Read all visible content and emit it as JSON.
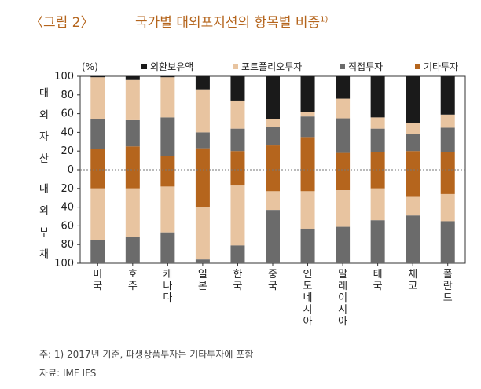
{
  "header": {
    "figure_label": "〈그림 2〉",
    "title": "국가별 대외포지션의 항목별 비중",
    "title_sup": "1)"
  },
  "footer": {
    "note": "주: 1) 2017년 기준, 파생상품투자는 기타투자에 포함",
    "source": "자료: IMF IFS"
  },
  "chart_data": {
    "type": "bar",
    "stacked": true,
    "diverging": true,
    "unit_label": "(%)",
    "ylim": [
      -100,
      100
    ],
    "y_ticks": [
      100,
      80,
      60,
      40,
      20,
      0,
      -20,
      -40,
      -60,
      -80,
      -100
    ],
    "y_tick_labels": [
      "100",
      "80",
      "60",
      "40",
      "20",
      "0",
      "20",
      "40",
      "60",
      "80",
      "100"
    ],
    "upper_axis_label": [
      "대",
      "외",
      "자",
      "산"
    ],
    "lower_axis_label": [
      "대",
      "외",
      "부",
      "채"
    ],
    "categories": [
      "미국",
      "호주",
      "캐나다",
      "일본",
      "한국",
      "중국",
      "인도네시아",
      "말레이시아",
      "태국",
      "체코",
      "폴란드"
    ],
    "assets": {
      "series": [
        {
          "name": "기타투자",
          "color": "#b5651d",
          "values": [
            22,
            25,
            15,
            23,
            20,
            26,
            35,
            18,
            19,
            20,
            19
          ]
        },
        {
          "name": "직접투자",
          "color": "#6b6b6b",
          "values": [
            32,
            28,
            41,
            17,
            24,
            20,
            22,
            37,
            25,
            18,
            26
          ]
        },
        {
          "name": "포트폴리오투자",
          "color": "#e8c4a0",
          "values": [
            45,
            43,
            43,
            46,
            30,
            8,
            5,
            21,
            12,
            12,
            14
          ]
        },
        {
          "name": "외환보유액",
          "color": "#1a1a1a",
          "values": [
            1,
            4,
            1,
            14,
            26,
            46,
            38,
            24,
            44,
            50,
            41
          ]
        }
      ]
    },
    "liabilities": {
      "series": [
        {
          "name": "기타투자",
          "color": "#b5651d",
          "values": [
            20,
            20,
            18,
            40,
            17,
            23,
            23,
            22,
            20,
            29,
            26
          ]
        },
        {
          "name": "포트폴리오투자",
          "color": "#e8c4a0",
          "values": [
            55,
            52,
            49,
            56,
            64,
            20,
            40,
            39,
            34,
            20,
            29
          ]
        },
        {
          "name": "직접투자",
          "color": "#6b6b6b",
          "values": [
            25,
            28,
            33,
            4,
            19,
            57,
            37,
            39,
            46,
            51,
            45
          ]
        }
      ]
    },
    "legend": {
      "placement": "top",
      "items": [
        {
          "name": "외환보유액",
          "color": "#1a1a1a"
        },
        {
          "name": "포트폴리오투자",
          "color": "#e8c4a0"
        },
        {
          "name": "직접투자",
          "color": "#6b6b6b"
        },
        {
          "name": "기타투자",
          "color": "#b5651d"
        }
      ]
    }
  }
}
